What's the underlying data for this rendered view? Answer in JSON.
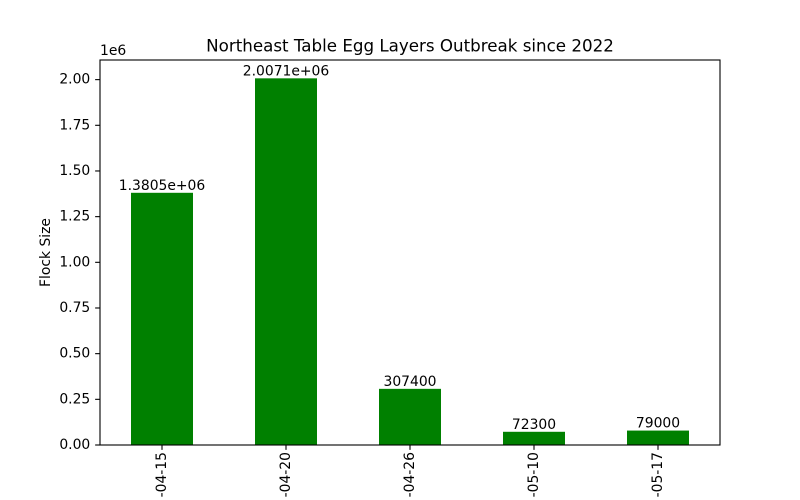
{
  "chart_data": {
    "type": "bar",
    "title": "Northeast Table Egg Layers Outbreak since 2022",
    "ylabel": "Flock Size",
    "y_offset_label": "1e6",
    "categories": [
      "-04-15",
      "-04-20",
      "-04-26",
      "-05-10",
      "-05-17"
    ],
    "values": [
      1380500,
      2007100,
      307400,
      72300,
      79000
    ],
    "data_labels": [
      "1.3805e+06",
      "2.0071e+06",
      "307400",
      "72300",
      "79000"
    ],
    "yticks": [
      0,
      250000,
      500000,
      750000,
      1000000,
      1250000,
      1500000,
      1750000,
      2000000
    ],
    "ytick_labels": [
      "0.00",
      "0.25",
      "0.50",
      "0.75",
      "1.00",
      "1.25",
      "1.50",
      "1.75",
      "2.00"
    ],
    "ylim": [
      0,
      2107455
    ],
    "grid": false,
    "bar_color": "#008000"
  }
}
